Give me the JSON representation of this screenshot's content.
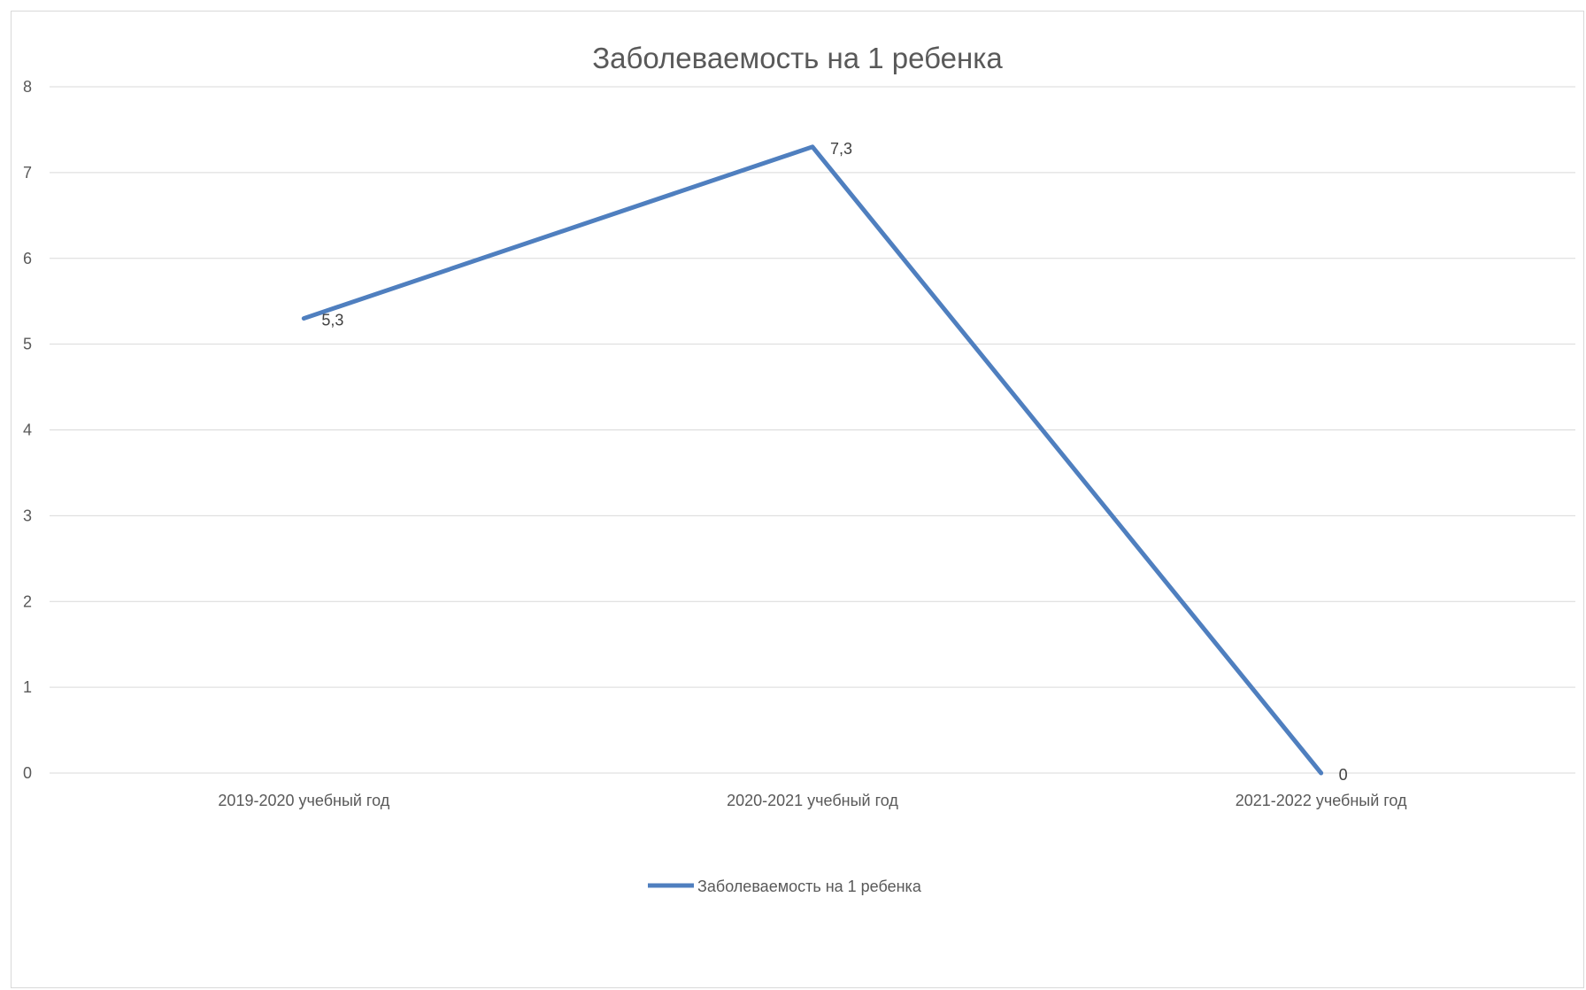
{
  "chart_data": {
    "type": "line",
    "title": "Заболеваемость на 1 ребенка",
    "categories": [
      "2019-2020 учебный год",
      "2020-2021 учебный год",
      "2021-2022 учебный год"
    ],
    "series": [
      {
        "name": "Заболеваемость на 1 ребенка",
        "values": [
          5.3,
          7.3,
          0
        ],
        "labels": [
          "5,3",
          "7,3",
          "0"
        ]
      }
    ],
    "ylim": [
      0,
      8
    ],
    "yticks": [
      "0",
      "1",
      "2",
      "3",
      "4",
      "5",
      "6",
      "7",
      "8"
    ],
    "grid": true,
    "legend_position": "bottom",
    "colors": {
      "line": "#4f7fbf",
      "grid": "#d9d9d9",
      "text": "#595959"
    }
  }
}
